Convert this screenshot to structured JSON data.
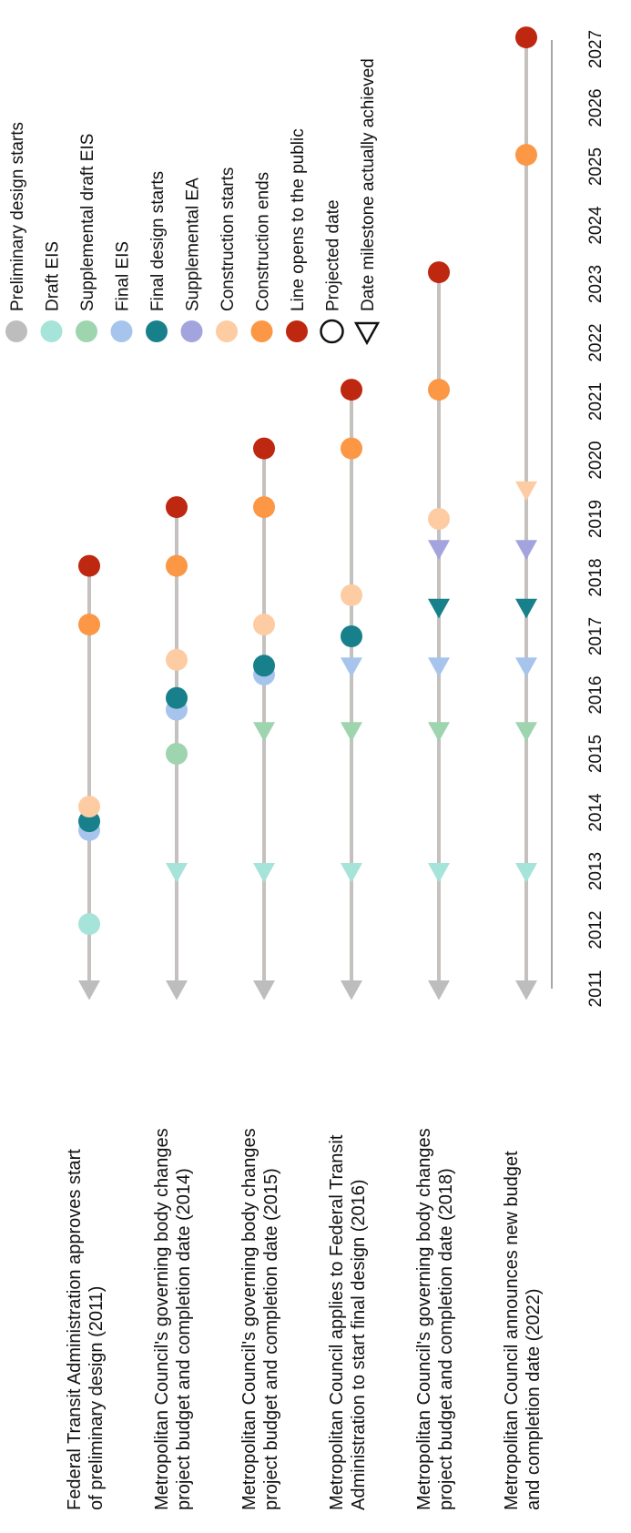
{
  "chart_data": {
    "type": "scatter",
    "x_axis": {
      "min": 2011,
      "max": 2027,
      "ticks": [
        "2011",
        "2012",
        "2013",
        "2014",
        "2015",
        "2016",
        "2017",
        "2018",
        "2019",
        "2020",
        "2021",
        "2022",
        "2023",
        "2024",
        "2025",
        "2026",
        "2027"
      ]
    },
    "legend_position": "top-right",
    "legend": {
      "milestones": [
        {
          "key": "preliminary",
          "label": "Preliminary design starts",
          "color": "#BDBDBD"
        },
        {
          "key": "draft_eis",
          "label": "Draft EIS",
          "color": "#A6E3D8"
        },
        {
          "key": "supp_draft_eis",
          "label": "Supplemental draft EIS",
          "color": "#9ED5AE"
        },
        {
          "key": "final_eis",
          "label": "Final EIS",
          "color": "#A7C5EC"
        },
        {
          "key": "final_design",
          "label": "Final design starts",
          "color": "#17808A"
        },
        {
          "key": "supp_ea",
          "label": "Supplemental EA",
          "color": "#A3A3DE"
        },
        {
          "key": "construction_starts",
          "label": "Construction starts",
          "color": "#FDCCA3"
        },
        {
          "key": "construction_ends",
          "label": "Construction ends",
          "color": "#FB9745"
        },
        {
          "key": "line_opens",
          "label": "Line opens to the public",
          "color": "#BE2710"
        }
      ],
      "markers": [
        {
          "shape": "circle",
          "label": "Projected date"
        },
        {
          "shape": "triangle",
          "label": "Date milestone actually achieved"
        }
      ]
    },
    "rows": [
      {
        "label_lines": [
          "Federal Transit Administration approves start",
          "of preliminary design (2011)"
        ],
        "line_start": 2011,
        "line_end": 2018.2,
        "points": [
          {
            "milestone": "preliminary",
            "x": 2011,
            "marker": "triangle"
          },
          {
            "milestone": "draft_eis",
            "x": 2012.1,
            "marker": "circle"
          },
          {
            "milestone": "final_eis",
            "x": 2013.7,
            "marker": "circle"
          },
          {
            "milestone": "final_design",
            "x": 2013.85,
            "marker": "circle"
          },
          {
            "milestone": "construction_starts",
            "x": 2014.1,
            "marker": "circle"
          },
          {
            "milestone": "construction_ends",
            "x": 2017.2,
            "marker": "circle"
          },
          {
            "milestone": "line_opens",
            "x": 2018.2,
            "marker": "circle"
          }
        ]
      },
      {
        "label_lines": [
          "Metropolitan Council's governing body changes",
          "project budget and completion date (2014)"
        ],
        "line_start": 2011,
        "line_end": 2019.2,
        "points": [
          {
            "milestone": "preliminary",
            "x": 2011,
            "marker": "triangle"
          },
          {
            "milestone": "draft_eis",
            "x": 2013,
            "marker": "triangle"
          },
          {
            "milestone": "supp_draft_eis",
            "x": 2015,
            "marker": "circle"
          },
          {
            "milestone": "final_eis",
            "x": 2015.75,
            "marker": "circle"
          },
          {
            "milestone": "final_design",
            "x": 2015.95,
            "marker": "circle"
          },
          {
            "milestone": "construction_starts",
            "x": 2016.6,
            "marker": "circle"
          },
          {
            "milestone": "construction_ends",
            "x": 2018.2,
            "marker": "circle"
          },
          {
            "milestone": "line_opens",
            "x": 2019.2,
            "marker": "circle"
          }
        ]
      },
      {
        "label_lines": [
          "Metropolitan Council's governing body changes",
          "project budget and completion date (2015)"
        ],
        "line_start": 2011,
        "line_end": 2020.2,
        "points": [
          {
            "milestone": "preliminary",
            "x": 2011,
            "marker": "triangle"
          },
          {
            "milestone": "draft_eis",
            "x": 2013,
            "marker": "triangle"
          },
          {
            "milestone": "supp_draft_eis",
            "x": 2015.4,
            "marker": "triangle"
          },
          {
            "milestone": "final_eis",
            "x": 2016.35,
            "marker": "circle"
          },
          {
            "milestone": "final_design",
            "x": 2016.5,
            "marker": "circle"
          },
          {
            "milestone": "construction_starts",
            "x": 2017.2,
            "marker": "circle"
          },
          {
            "milestone": "construction_ends",
            "x": 2019.2,
            "marker": "circle"
          },
          {
            "milestone": "line_opens",
            "x": 2020.2,
            "marker": "circle"
          }
        ]
      },
      {
        "label_lines": [
          "Metropolitan Council applies to Federal Transit",
          "Administration to start final design (2016)"
        ],
        "line_start": 2011,
        "line_end": 2021.2,
        "points": [
          {
            "milestone": "preliminary",
            "x": 2011,
            "marker": "triangle"
          },
          {
            "milestone": "draft_eis",
            "x": 2013,
            "marker": "triangle"
          },
          {
            "milestone": "supp_draft_eis",
            "x": 2015.4,
            "marker": "triangle"
          },
          {
            "milestone": "final_eis",
            "x": 2016.5,
            "marker": "triangle"
          },
          {
            "milestone": "final_design",
            "x": 2017,
            "marker": "circle"
          },
          {
            "milestone": "construction_starts",
            "x": 2017.7,
            "marker": "circle"
          },
          {
            "milestone": "construction_ends",
            "x": 2020.2,
            "marker": "circle"
          },
          {
            "milestone": "line_opens",
            "x": 2021.2,
            "marker": "circle"
          }
        ]
      },
      {
        "label_lines": [
          "Metropolitan Council's governing body changes",
          "project budget and completion date (2018)"
        ],
        "line_start": 2011,
        "line_end": 2023.2,
        "points": [
          {
            "milestone": "preliminary",
            "x": 2011,
            "marker": "triangle"
          },
          {
            "milestone": "draft_eis",
            "x": 2013,
            "marker": "triangle"
          },
          {
            "milestone": "supp_draft_eis",
            "x": 2015.4,
            "marker": "triangle"
          },
          {
            "milestone": "final_eis",
            "x": 2016.5,
            "marker": "triangle"
          },
          {
            "milestone": "final_design",
            "x": 2017.5,
            "marker": "triangle"
          },
          {
            "milestone": "supp_ea",
            "x": 2018.5,
            "marker": "triangle"
          },
          {
            "milestone": "construction_starts",
            "x": 2019,
            "marker": "circle"
          },
          {
            "milestone": "construction_ends",
            "x": 2021.2,
            "marker": "circle"
          },
          {
            "milestone": "line_opens",
            "x": 2023.2,
            "marker": "circle"
          }
        ]
      },
      {
        "label_lines": [
          "Metropolitan Council announces new budget",
          "and completion date (2022)"
        ],
        "line_start": 2011,
        "line_end": 2027.2,
        "points": [
          {
            "milestone": "preliminary",
            "x": 2011,
            "marker": "triangle"
          },
          {
            "milestone": "draft_eis",
            "x": 2013,
            "marker": "triangle"
          },
          {
            "milestone": "supp_draft_eis",
            "x": 2015.4,
            "marker": "triangle"
          },
          {
            "milestone": "final_eis",
            "x": 2016.5,
            "marker": "triangle"
          },
          {
            "milestone": "final_design",
            "x": 2017.5,
            "marker": "triangle"
          },
          {
            "milestone": "supp_ea",
            "x": 2018.5,
            "marker": "triangle"
          },
          {
            "milestone": "construction_starts",
            "x": 2019.5,
            "marker": "triangle"
          },
          {
            "milestone": "construction_ends",
            "x": 2025.2,
            "marker": "circle"
          },
          {
            "milestone": "line_opens",
            "x": 2027.2,
            "marker": "circle"
          }
        ]
      }
    ]
  }
}
